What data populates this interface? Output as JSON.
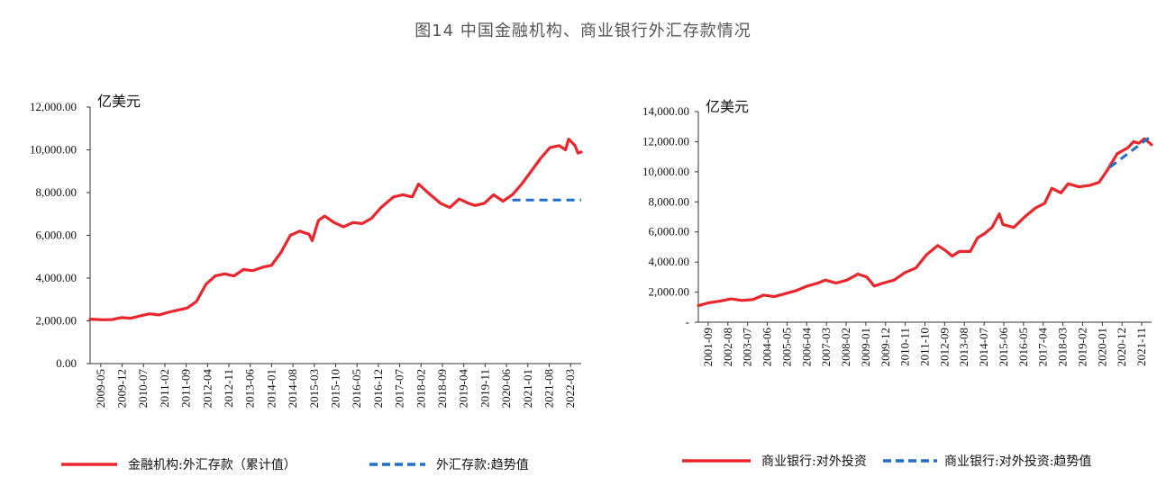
{
  "page_title": "图14 中国金融机构、商业银行外汇存款情况",
  "chart_data": [
    {
      "type": "line",
      "unit": "亿美元",
      "ylim": [
        0,
        12000
      ],
      "yticks": [
        "0.00",
        "2,000.00",
        "4,000.00",
        "6,000.00",
        "8,000.00",
        "10,000.00",
        "12,000.00"
      ],
      "xlabels": [
        "2009-05",
        "2009-12",
        "2010-07",
        "2011-02",
        "2011-09",
        "2012-04",
        "2012-11",
        "2013-06",
        "2014-01",
        "2014-08",
        "2015-03",
        "2015-10",
        "2016-05",
        "2016-12",
        "2017-07",
        "2018-02",
        "2018-09",
        "2019-04",
        "2019-11",
        "2020-06",
        "2021-01",
        "2021-08",
        "2022-03"
      ],
      "x_start": "2009-05",
      "x_end": "2022-06",
      "series": [
        {
          "name": "金融机构:外汇存款（累计值）",
          "color": "#e8262b",
          "style": "solid",
          "points": [
            [
              "2009-05",
              2080
            ],
            [
              "2009-09",
              2050
            ],
            [
              "2009-12",
              2060
            ],
            [
              "2010-03",
              2150
            ],
            [
              "2010-06",
              2120
            ],
            [
              "2010-09",
              2230
            ],
            [
              "2010-12",
              2330
            ],
            [
              "2011-03",
              2280
            ],
            [
              "2011-06",
              2400
            ],
            [
              "2011-09",
              2500
            ],
            [
              "2011-12",
              2600
            ],
            [
              "2012-03",
              2900
            ],
            [
              "2012-06",
              3700
            ],
            [
              "2012-09",
              4100
            ],
            [
              "2012-12",
              4200
            ],
            [
              "2013-03",
              4100
            ],
            [
              "2013-06",
              4400
            ],
            [
              "2013-09",
              4350
            ],
            [
              "2013-12",
              4500
            ],
            [
              "2014-03",
              4600
            ],
            [
              "2014-06",
              5200
            ],
            [
              "2014-09",
              6000
            ],
            [
              "2014-12",
              6200
            ],
            [
              "2015-03",
              6050
            ],
            [
              "2015-04",
              5750
            ],
            [
              "2015-06",
              6700
            ],
            [
              "2015-08",
              6900
            ],
            [
              "2015-11",
              6600
            ],
            [
              "2016-02",
              6400
            ],
            [
              "2016-05",
              6600
            ],
            [
              "2016-08",
              6550
            ],
            [
              "2016-11",
              6800
            ],
            [
              "2017-02",
              7300
            ],
            [
              "2017-06",
              7800
            ],
            [
              "2017-09",
              7900
            ],
            [
              "2017-12",
              7800
            ],
            [
              "2018-02",
              8400
            ],
            [
              "2018-05",
              8000
            ],
            [
              "2018-09",
              7500
            ],
            [
              "2018-12",
              7300
            ],
            [
              "2019-03",
              7700
            ],
            [
              "2019-06",
              7500
            ],
            [
              "2019-08",
              7400
            ],
            [
              "2019-11",
              7500
            ],
            [
              "2020-02",
              7900
            ],
            [
              "2020-05",
              7600
            ],
            [
              "2020-08",
              7900
            ],
            [
              "2020-11",
              8400
            ],
            [
              "2021-02",
              9000
            ],
            [
              "2021-05",
              9600
            ],
            [
              "2021-08",
              10100
            ],
            [
              "2021-11",
              10200
            ],
            [
              "2022-01",
              10000
            ],
            [
              "2022-02",
              10500
            ],
            [
              "2022-04",
              10200
            ],
            [
              "2022-05",
              9850
            ],
            [
              "2022-06",
              9900
            ]
          ]
        },
        {
          "name": "外汇存款:趋势值",
          "color": "#1f6fc4",
          "style": "dashed",
          "points": [
            [
              "2020-08",
              7650
            ],
            [
              "2022-06",
              7650
            ]
          ]
        }
      ]
    },
    {
      "type": "line",
      "unit": "亿美元",
      "ylim": [
        0,
        14000
      ],
      "yticks": [
        "-",
        "2,000.00",
        "4,000.00",
        "6,000.00",
        "8,000.00",
        "10,000.00",
        "12,000.00",
        "14,000.00"
      ],
      "xlabels": [
        "2001-09",
        "2002-08",
        "2003-07",
        "2004-06",
        "2005-05",
        "2006-04",
        "2007-03",
        "2008-02",
        "2009-01",
        "2009-12",
        "2010-11",
        "2011-10",
        "2012-09",
        "2013-08",
        "2014-07",
        "2015-06",
        "2016-05",
        "2017-04",
        "2018-03",
        "2019-02",
        "2020-01",
        "2020-12",
        "2021-11"
      ],
      "x_start": "2001-09",
      "x_end": "2022-07",
      "series": [
        {
          "name": "商业银行:对外投资",
          "color": "#e8262b",
          "style": "solid",
          "points": [
            [
              "2001-09",
              1100
            ],
            [
              "2002-03",
              1300
            ],
            [
              "2002-09",
              1400
            ],
            [
              "2003-03",
              1550
            ],
            [
              "2003-09",
              1450
            ],
            [
              "2004-03",
              1500
            ],
            [
              "2004-09",
              1800
            ],
            [
              "2005-03",
              1700
            ],
            [
              "2005-09",
              1900
            ],
            [
              "2006-03",
              2100
            ],
            [
              "2006-09",
              2400
            ],
            [
              "2007-03",
              2600
            ],
            [
              "2007-07",
              2800
            ],
            [
              "2008-01",
              2600
            ],
            [
              "2008-07",
              2800
            ],
            [
              "2009-01",
              3200
            ],
            [
              "2009-06",
              3000
            ],
            [
              "2009-10",
              2400
            ],
            [
              "2010-03",
              2600
            ],
            [
              "2010-09",
              2800
            ],
            [
              "2011-03",
              3300
            ],
            [
              "2011-09",
              3600
            ],
            [
              "2012-03",
              4500
            ],
            [
              "2012-09",
              5100
            ],
            [
              "2013-01",
              4800
            ],
            [
              "2013-05",
              4400
            ],
            [
              "2013-09",
              4700
            ],
            [
              "2014-03",
              4700
            ],
            [
              "2014-07",
              5600
            ],
            [
              "2014-11",
              5900
            ],
            [
              "2015-03",
              6300
            ],
            [
              "2015-07",
              7200
            ],
            [
              "2015-09",
              6500
            ],
            [
              "2016-03",
              6300
            ],
            [
              "2016-09",
              7000
            ],
            [
              "2017-03",
              7600
            ],
            [
              "2017-08",
              7900
            ],
            [
              "2017-12",
              8900
            ],
            [
              "2018-05",
              8600
            ],
            [
              "2018-09",
              9200
            ],
            [
              "2019-03",
              9000
            ],
            [
              "2019-09",
              9100
            ],
            [
              "2020-02",
              9300
            ],
            [
              "2020-06",
              10000
            ],
            [
              "2020-12",
              11200
            ],
            [
              "2021-06",
              11600
            ],
            [
              "2021-09",
              12000
            ],
            [
              "2021-12",
              11900
            ],
            [
              "2022-03",
              12200
            ],
            [
              "2022-07",
              11800
            ]
          ]
        },
        {
          "name": "商业银行:对外投资:趋势值",
          "color": "#1f6fc4",
          "style": "dashed",
          "points": [
            [
              "2020-08",
              10300
            ],
            [
              "2022-06",
              12300
            ]
          ]
        }
      ]
    }
  ]
}
